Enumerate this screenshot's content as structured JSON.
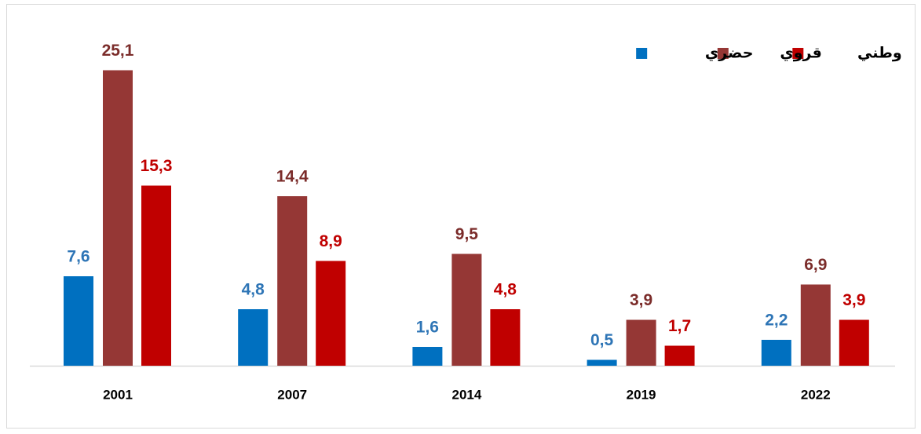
{
  "chart_data": {
    "type": "bar",
    "categories": [
      "2001",
      "2007",
      "2014",
      "2019",
      "2022"
    ],
    "series": [
      {
        "name": "حضري",
        "color": "#0070C0",
        "values": [
          7.6,
          4.8,
          1.6,
          0.5,
          2.2
        ],
        "value_labels": [
          "7,6",
          "4,8",
          "1,6",
          "0,5",
          "2,2"
        ]
      },
      {
        "name": "قروي",
        "color": "#953735",
        "values": [
          25.1,
          14.4,
          9.5,
          3.9,
          6.9
        ],
        "value_labels": [
          "25,1",
          "14,4",
          "9,5",
          "3,9",
          "6,9"
        ]
      },
      {
        "name": "وطني",
        "color": "#C00000",
        "values": [
          15.3,
          8.9,
          4.8,
          1.7,
          3.9
        ],
        "value_labels": [
          "15,3",
          "8,9",
          "4,8",
          "1,7",
          "3,9"
        ]
      }
    ],
    "legend": "top-right"
  }
}
